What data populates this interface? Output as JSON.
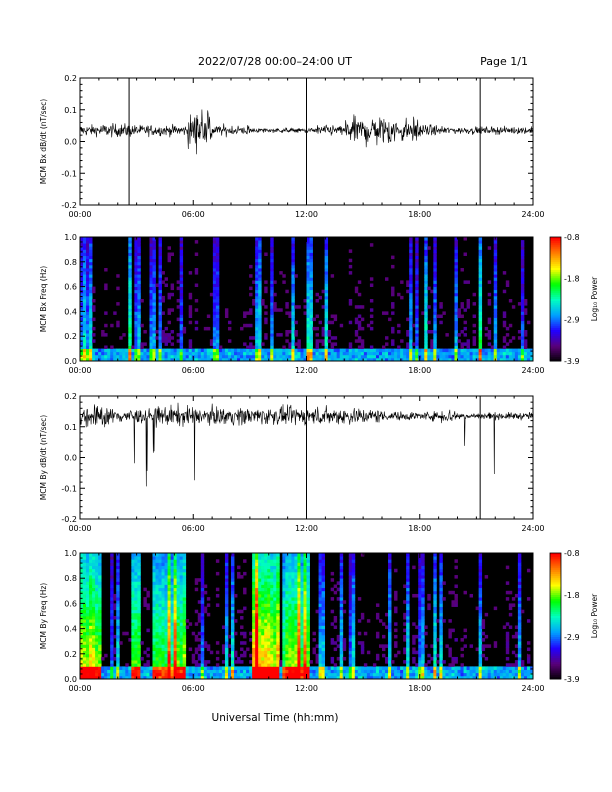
{
  "header": {
    "title": "2022/07/28  00:00–24:00 UT",
    "page": "Page 1/1"
  },
  "x_axis": {
    "title": "Universal Time (hh:mm)"
  },
  "colorbar": {
    "label": "Log₁₀ Power",
    "ticks": [
      "-0.8",
      "-1.8",
      "-2.9",
      "-3.9"
    ],
    "range": [
      -3.9,
      -0.8
    ],
    "colors": [
      "#000000",
      "#5a0078",
      "#2200ff",
      "#00a0ff",
      "#00ffc0",
      "#00ff00",
      "#ffff00",
      "#ff8000",
      "#ff0000"
    ]
  },
  "chart_data": [
    {
      "type": "line",
      "ylabel": "MCM Bx dB/dt (nT/sec)",
      "xlim": [
        0,
        24
      ],
      "ylim": [
        -0.2,
        0.2
      ],
      "x_ticks": [
        "00:00",
        "06:00",
        "12:00",
        "18:00",
        "24:00"
      ],
      "y_ticks": [
        "0.2",
        "0.1",
        "0.0",
        "-0.1",
        "-0.2"
      ],
      "baseline": 0.035,
      "spikes_hours": [
        2.6,
        12.0,
        21.2
      ],
      "color": "#000000"
    },
    {
      "type": "heatmap",
      "ylabel": "MCM Bx Freq (Hz)",
      "xlim": [
        0,
        24
      ],
      "ylim": [
        0,
        1.0
      ],
      "x_ticks": [
        "00:00",
        "06:00",
        "12:00",
        "18:00",
        "24:00"
      ],
      "y_ticks": [
        "1.0",
        "0.8",
        "0.6",
        "0.4",
        "0.2",
        "0.0"
      ]
    },
    {
      "type": "line",
      "ylabel": "MCM By dB/dt (nT/sec)",
      "xlim": [
        0,
        24
      ],
      "ylim": [
        -0.2,
        0.2
      ],
      "x_ticks": [
        "00:00",
        "06:00",
        "12:00",
        "18:00",
        "24:00"
      ],
      "y_ticks": [
        "0.2",
        "0.1",
        "0.0",
        "-0.1",
        "-0.2"
      ],
      "baseline": 0.135,
      "spikes_hours": [
        12.0,
        21.2
      ],
      "color": "#000000"
    },
    {
      "type": "heatmap",
      "ylabel": "MCM By Freq (Hz)",
      "xlim": [
        0,
        24
      ],
      "ylim": [
        0,
        1.0
      ],
      "x_ticks": [
        "00:00",
        "06:00",
        "12:00",
        "18:00",
        "24:00"
      ],
      "y_ticks": [
        "1.0",
        "0.8",
        "0.6",
        "0.4",
        "0.2",
        "0.0"
      ]
    }
  ]
}
